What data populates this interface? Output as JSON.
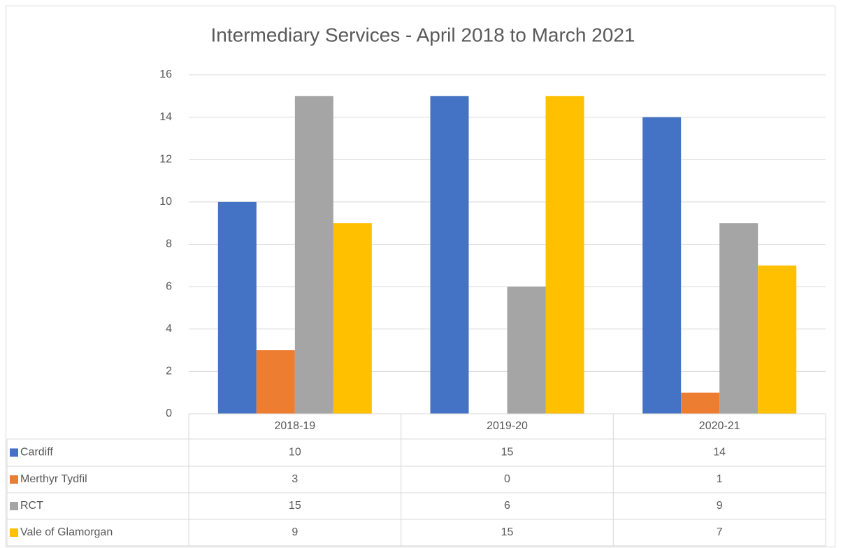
{
  "chart_data": {
    "type": "bar",
    "title": "Intermediary Services - April 2018 to March 2021",
    "categories": [
      "2018-19",
      "2019-20",
      "2020-21"
    ],
    "series": [
      {
        "name": "Cardiff",
        "color": "#4472c4",
        "values": [
          10,
          15,
          14
        ]
      },
      {
        "name": "Merthyr Tydfil",
        "color": "#ed7d31",
        "values": [
          3,
          0,
          1
        ]
      },
      {
        "name": "RCT",
        "color": "#a5a5a5",
        "values": [
          15,
          6,
          9
        ]
      },
      {
        "name": "Vale of Glamorgan",
        "color": "#ffc000",
        "values": [
          9,
          15,
          7
        ]
      }
    ],
    "ylim": [
      0,
      16
    ],
    "yticks": [
      0,
      2,
      4,
      6,
      8,
      10,
      12,
      14,
      16
    ],
    "grid": true,
    "data_table": true
  }
}
